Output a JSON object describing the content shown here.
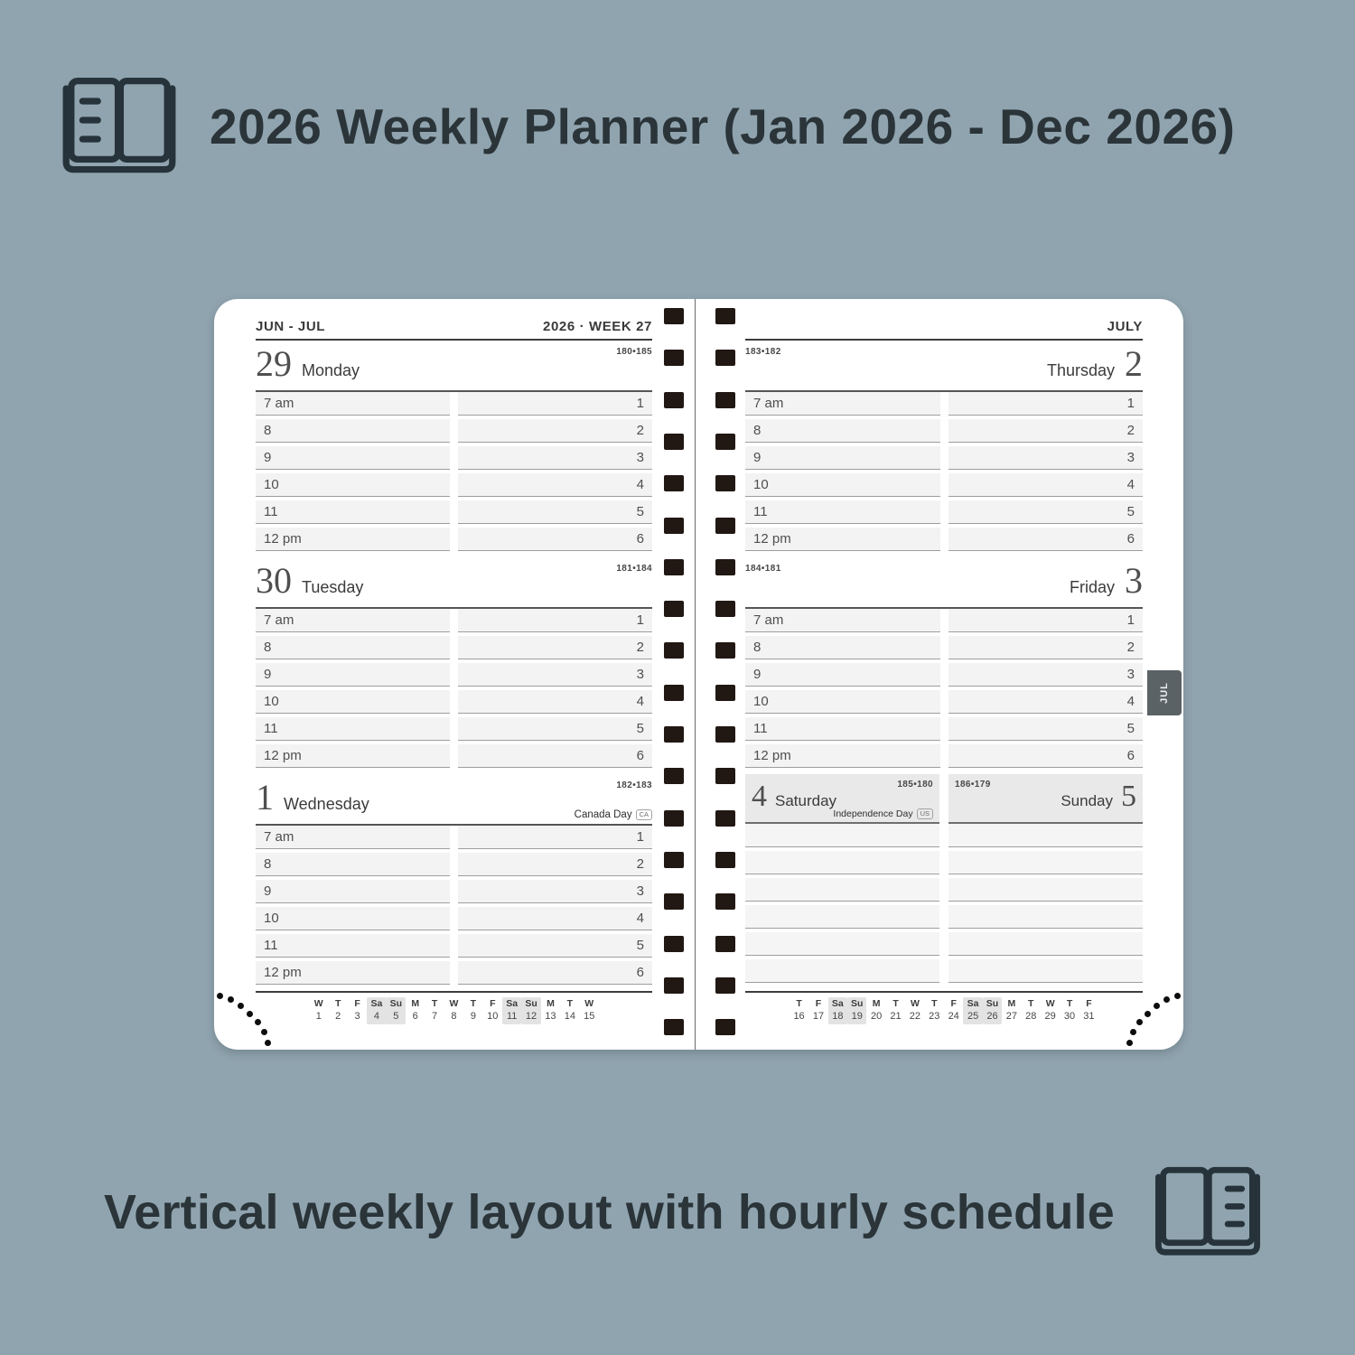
{
  "colors": {
    "bg": "#90a4af",
    "ink": "#2a3439",
    "page": "#ffffff",
    "row_fill": "#f3f3f3",
    "row_line": "#9e9e9e",
    "block_line": "#565656",
    "head_line": "#3d3d3d",
    "weekend_band": "#e9e9e9",
    "mini_hl": "#e3e3e3",
    "spiral": "#211713",
    "tab_bg": "#5b6266",
    "tab_ink": "#eceff0",
    "center_line": "#6a6a6a"
  },
  "header": {
    "title": "2026 Weekly Planner (Jan 2026 - Dec 2026)"
  },
  "footer": {
    "caption": "Vertical weekly layout with hourly schedule"
  },
  "planner": {
    "hours_morning": [
      "7 am",
      "8",
      "9",
      "10",
      "11",
      "12 pm"
    ],
    "hours_afternoon": [
      "1",
      "2",
      "3",
      "4",
      "5",
      "6"
    ],
    "left_page": {
      "month_label": "JUN - JUL",
      "week_label": "2026 · WEEK 27",
      "days": [
        {
          "number": "29",
          "name": "Monday",
          "day_count": "180•185",
          "side": "left"
        },
        {
          "number": "30",
          "name": "Tuesday",
          "day_count": "181•184",
          "side": "left"
        },
        {
          "number": "1",
          "name": "Wednesday",
          "day_count": "182•183",
          "side": "left",
          "holiday": "Canada Day",
          "holiday_code": "CA"
        }
      ],
      "mini_calendar": {
        "letters": [
          "W",
          "T",
          "F",
          "Sa",
          "Su",
          "M",
          "T",
          "W",
          "T",
          "F",
          "Sa",
          "Su",
          "M",
          "T",
          "W"
        ],
        "numbers": [
          "1",
          "2",
          "3",
          "4",
          "5",
          "6",
          "7",
          "8",
          "9",
          "10",
          "11",
          "12",
          "13",
          "14",
          "15"
        ],
        "weekend_indices": [
          3,
          4,
          10,
          11
        ]
      }
    },
    "right_page": {
      "month_label": "JULY",
      "tab_label": "JUL",
      "days": [
        {
          "number": "2",
          "name": "Thursday",
          "day_count": "183•182",
          "side": "right"
        },
        {
          "number": "3",
          "name": "Friday",
          "day_count": "184•181",
          "side": "right"
        }
      ],
      "weekend": [
        {
          "number": "4",
          "name": "Saturday",
          "day_count": "185•180",
          "side": "left",
          "holiday": "Independence Day",
          "holiday_code": "US"
        },
        {
          "number": "5",
          "name": "Sunday",
          "day_count": "186•179",
          "side": "right"
        }
      ],
      "mini_calendar": {
        "letters": [
          "T",
          "F",
          "Sa",
          "Su",
          "M",
          "T",
          "W",
          "T",
          "F",
          "Sa",
          "Su",
          "M",
          "T",
          "W",
          "T",
          "F"
        ],
        "numbers": [
          "16",
          "17",
          "18",
          "19",
          "20",
          "21",
          "22",
          "23",
          "24",
          "25",
          "26",
          "27",
          "28",
          "29",
          "30",
          "31"
        ],
        "weekend_indices": [
          2,
          3,
          9,
          10
        ]
      }
    }
  }
}
